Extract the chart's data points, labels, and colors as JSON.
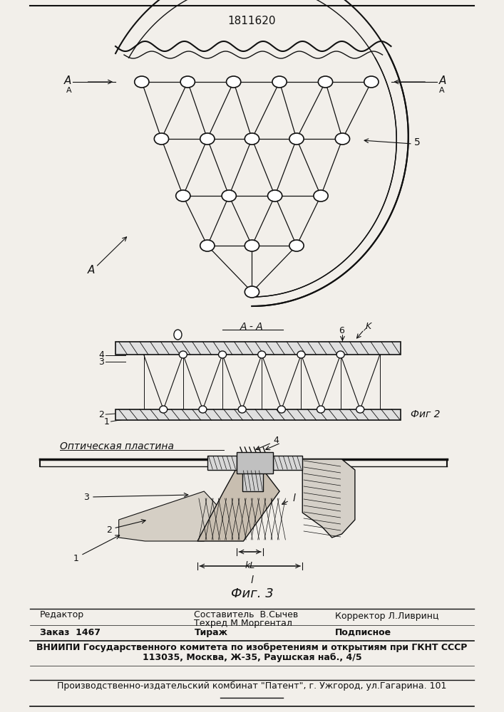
{
  "bg_color": "#f2efea",
  "title_text": "1811620",
  "fig2_label": "Фиг 2",
  "fig3_label": "Фиг. 3",
  "optical_label": "Оптическая пластина",
  "editor_line": "Редактор",
  "composer_line": "Составитель  В.Сычев",
  "tecred_line": "Техред М.Моргентал",
  "corrector_line": "Корректор Л.Ливринц",
  "order_line": "Заказ  1467",
  "tirazh_line": "Тираж",
  "podpisnoe_line": "Подписное",
  "vniipri_line": "ВНИИПИ Государственного комитета по изобретениям и открытиям при ГКНТ СССР",
  "address_line": "113035, Москва, Ж-35, Раушская наб., 4/5",
  "publisher_line": "Производственно-издательский комбинат \"Патент\", г. Ужгород, ул.Гагарина. 101",
  "line_color": "#111111",
  "text_color": "#111111"
}
